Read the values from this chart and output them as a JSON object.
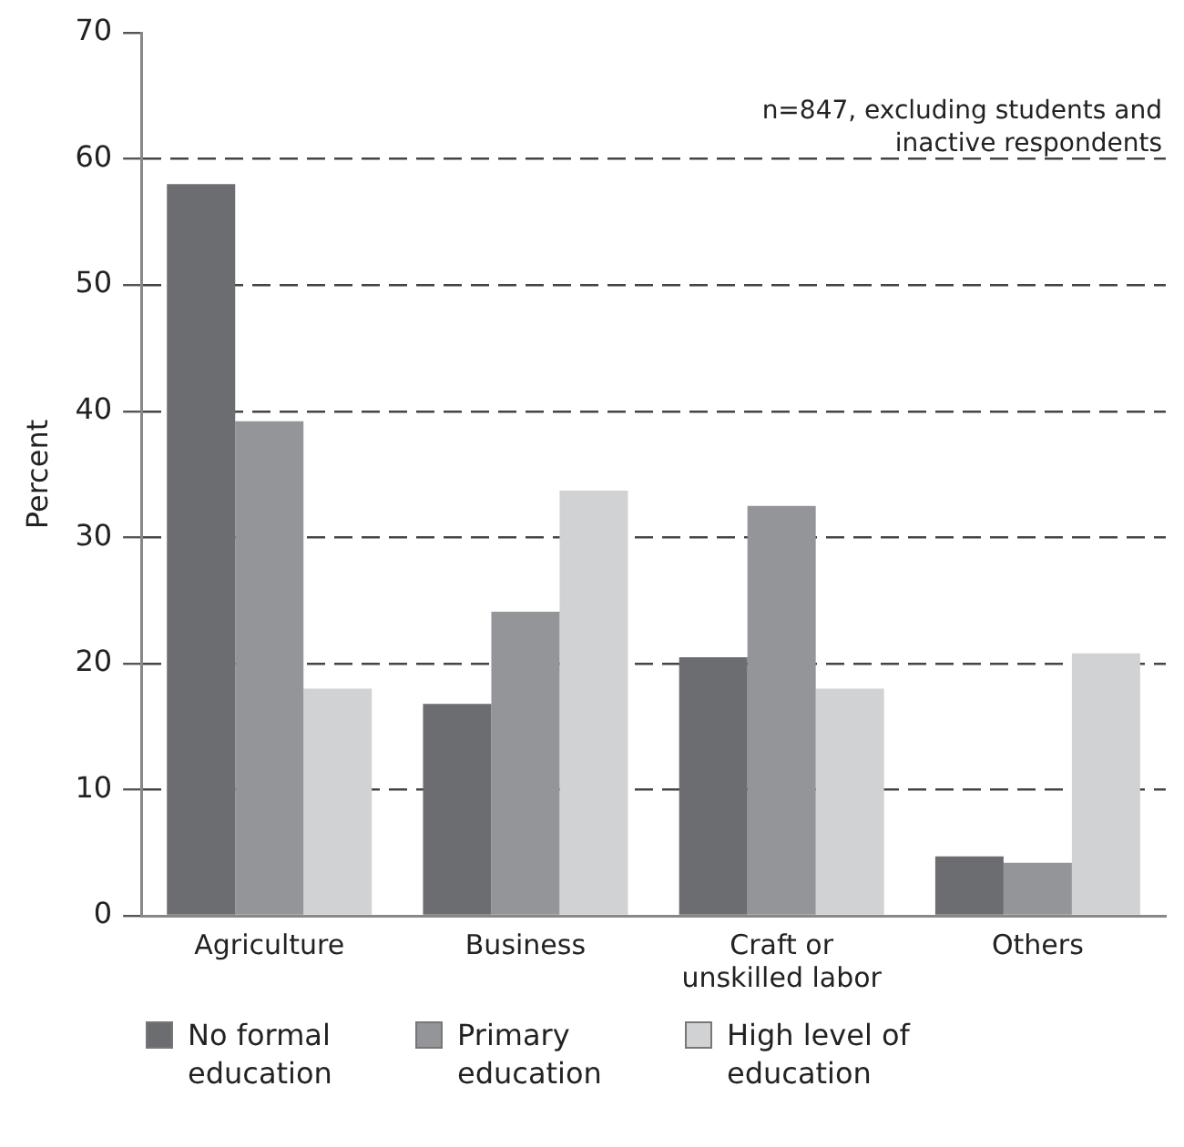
{
  "chart_data": {
    "type": "bar",
    "ylabel": "Percent",
    "categories": [
      "Agriculture",
      "Business",
      "Craft or unskilled labor",
      "Others"
    ],
    "series": [
      {
        "name": "No formal education",
        "color": "#6c6d71",
        "values": [
          58,
          16.8,
          20.5,
          4.7
        ]
      },
      {
        "name": "Primary education",
        "color": "#949599",
        "values": [
          39.2,
          24.1,
          32.5,
          4.2
        ]
      },
      {
        "name": "High level of education",
        "color": "#d1d2d4",
        "values": [
          18,
          33.7,
          18,
          20.8
        ]
      }
    ],
    "ylim": [
      0,
      70
    ],
    "yticks": [
      0,
      10,
      20,
      30,
      40,
      50,
      60,
      70
    ],
    "grid": "y",
    "legend": "bottom",
    "annotations": [
      "n=847, excluding students and inactive respondents"
    ]
  }
}
